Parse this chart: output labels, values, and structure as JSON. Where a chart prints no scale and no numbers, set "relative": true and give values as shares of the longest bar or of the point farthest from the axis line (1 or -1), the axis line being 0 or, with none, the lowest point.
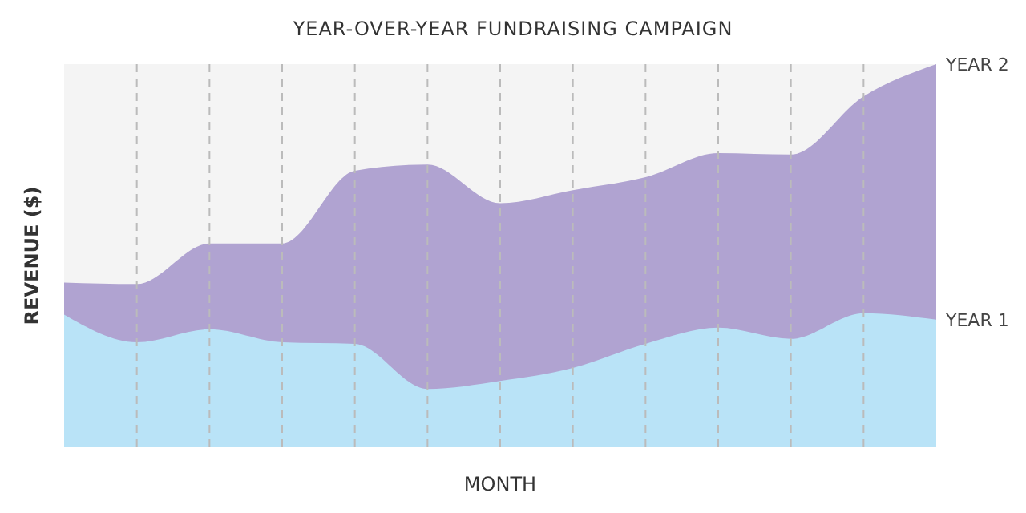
{
  "chart_data": {
    "type": "area",
    "title": "YEAR-OVER-YEAR FUNDRAISING CAMPAIGN",
    "xlabel": "MONTH",
    "ylabel": "REVENUE ($)",
    "relative": true,
    "grid": "x",
    "categories": [
      null,
      null,
      null,
      null,
      null,
      null,
      null,
      null,
      null,
      null,
      null,
      null,
      null
    ],
    "series": [
      {
        "name": "YEAR 2",
        "color": "#b0a3d1",
        "values": [
          0.43,
          0.426,
          0.532,
          0.532,
          0.722,
          0.738,
          0.637,
          0.671,
          0.705,
          0.768,
          0.764,
          0.916,
          1
        ]
      },
      {
        "name": "YEAR 1",
        "color": "#b9e3f7",
        "values": [
          0.346,
          0.274,
          0.308,
          0.274,
          0.27,
          0.152,
          0.173,
          0.207,
          0.27,
          0.312,
          0.283,
          0.35,
          0.333
        ]
      }
    ]
  }
}
